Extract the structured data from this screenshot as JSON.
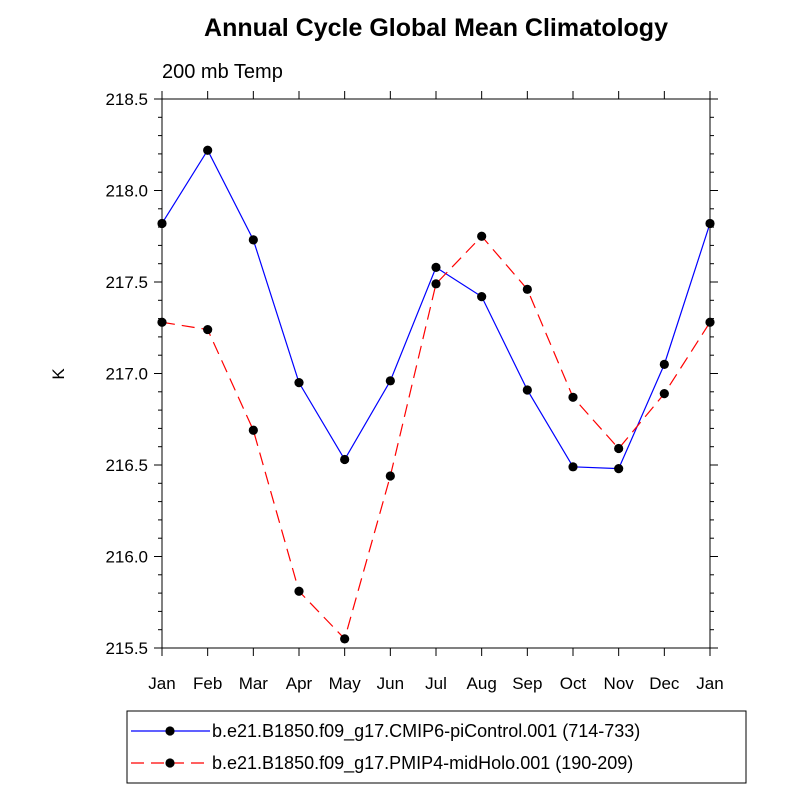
{
  "chart_data": {
    "type": "line",
    "title": "Annual Cycle Global Mean Climatology",
    "subtitle": "200 mb Temp",
    "xlabel": "",
    "ylabel": "K",
    "ylim": [
      215.5,
      218.5
    ],
    "y_ticks": [
      "215.5",
      "216.0",
      "216.5",
      "217.0",
      "217.5",
      "218.0",
      "218.5"
    ],
    "categories": [
      "Jan",
      "Feb",
      "Mar",
      "Apr",
      "May",
      "Jun",
      "Jul",
      "Aug",
      "Sep",
      "Oct",
      "Nov",
      "Dec",
      "Jan"
    ],
    "series": [
      {
        "name": "b.e21.B1850.f09_g17.CMIP6-piControl.001 (714-733)",
        "color": "#0000ff",
        "dash": "solid",
        "marker": "filled-circle",
        "values": [
          217.82,
          218.22,
          217.73,
          216.95,
          216.53,
          216.96,
          217.58,
          217.42,
          216.91,
          216.49,
          216.48,
          217.05,
          217.82
        ]
      },
      {
        "name": "b.e21.B1850.f09_g17.PMIP4-midHolo.001 (190-209)",
        "color": "#ff0000",
        "dash": "dashed",
        "marker": "filled-circle",
        "values": [
          217.28,
          217.24,
          216.69,
          215.81,
          215.55,
          216.44,
          217.49,
          217.75,
          217.46,
          216.87,
          216.59,
          216.89,
          217.28
        ]
      }
    ],
    "legend_position": "bottom",
    "grid": false
  }
}
